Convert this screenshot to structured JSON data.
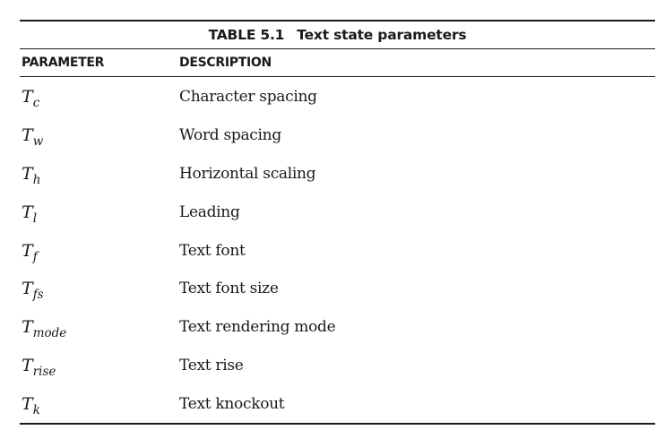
{
  "table": {
    "number": "TABLE 5.1",
    "title": "Text state parameters",
    "headers": {
      "parameter": "PARAMETER",
      "description": "DESCRIPTION"
    },
    "rows": [
      {
        "symbol": "T",
        "subscript": "c",
        "description": "Character spacing"
      },
      {
        "symbol": "T",
        "subscript": "w",
        "description": "Word spacing"
      },
      {
        "symbol": "T",
        "subscript": "h",
        "description": "Horizontal scaling"
      },
      {
        "symbol": "T",
        "subscript": "l",
        "description": "Leading"
      },
      {
        "symbol": "T",
        "subscript": "f",
        "description": "Text font"
      },
      {
        "symbol": "T",
        "subscript": "fs",
        "description": "Text font size"
      },
      {
        "symbol": "T",
        "subscript": "mode",
        "description": "Text rendering mode"
      },
      {
        "symbol": "T",
        "subscript": "rise",
        "description": "Text rise"
      },
      {
        "symbol": "T",
        "subscript": "k",
        "description": "Text knockout"
      }
    ]
  }
}
